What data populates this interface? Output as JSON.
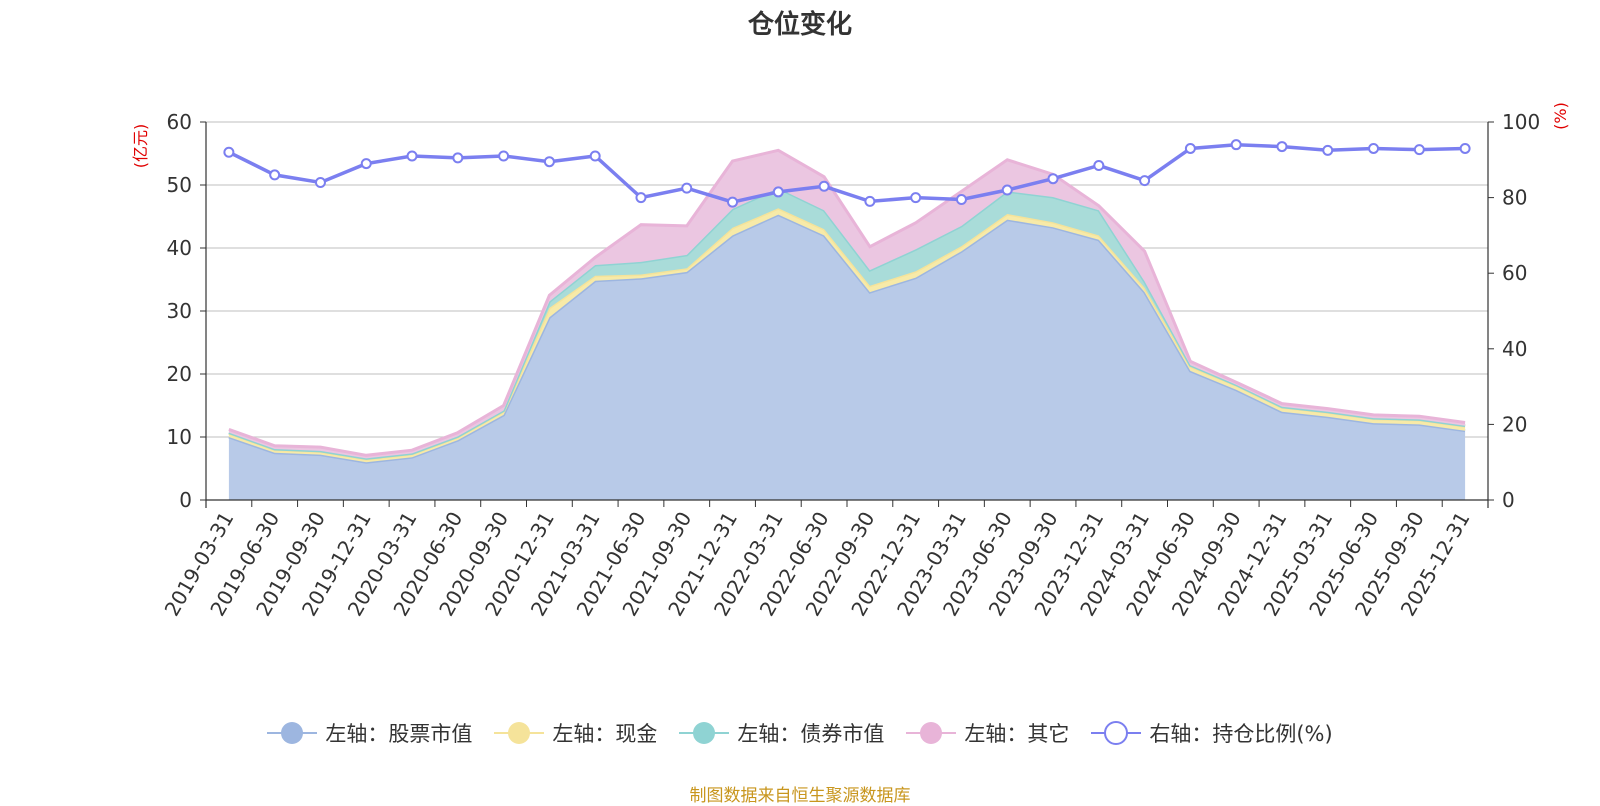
{
  "chart_data": {
    "type": "area",
    "title": "仓位变化",
    "left_axis_unit": "(亿元)",
    "right_axis_unit": "(%)",
    "ylim_left": [
      0,
      60
    ],
    "ylim_right": [
      0,
      100
    ],
    "left_ticks": [
      0,
      10,
      20,
      30,
      40,
      50,
      60
    ],
    "right_ticks": [
      0,
      20,
      40,
      60,
      80,
      100
    ],
    "categories": [
      "2019-03-31",
      "2019-06-30",
      "2019-09-30",
      "2019-12-31",
      "2020-03-31",
      "2020-06-30",
      "2020-09-30",
      "2020-12-31",
      "2021-03-31",
      "2021-06-30",
      "2021-09-30",
      "2021-12-31",
      "2022-03-31",
      "2022-06-30",
      "2022-09-30",
      "2022-12-31",
      "2023-03-31",
      "2023-06-30",
      "2023-09-30",
      "2023-12-31",
      "2024-03-31",
      "2024-06-30",
      "2024-09-30",
      "2024-12-31",
      "2025-03-31",
      "2025-06-30",
      "2025-09-30",
      "2025-12-31"
    ],
    "stacked_series": [
      {
        "name": "左轴：股票市值",
        "color": "#9db6e0",
        "fill": "#b8cae8",
        "values": [
          10.0,
          7.5,
          7.2,
          6.0,
          6.8,
          9.5,
          13.5,
          29.0,
          34.8,
          35.2,
          36.2,
          42.0,
          45.3,
          42.0,
          33.0,
          35.3,
          39.5,
          44.5,
          43.3,
          41.3,
          33.0,
          20.5,
          17.5,
          14.0,
          13.2,
          12.2,
          12.0,
          11.0
        ]
      },
      {
        "name": "左轴：现金",
        "color": "#f5e39a",
        "fill": "#f7eaa8",
        "values": [
          0.6,
          0.5,
          0.5,
          0.5,
          0.5,
          0.5,
          0.6,
          1.5,
          0.8,
          0.6,
          0.6,
          1.2,
          1.0,
          1.0,
          1.0,
          1.0,
          0.8,
          0.9,
          0.8,
          0.7,
          0.7,
          0.7,
          0.7,
          0.7,
          0.7,
          0.7,
          0.7,
          0.7
        ]
      },
      {
        "name": "左轴：债券市值",
        "color": "#8fd3d3",
        "fill": "#a9dcd9",
        "values": [
          0.1,
          0.1,
          0.1,
          0.1,
          0.1,
          0.1,
          0.1,
          1.0,
          1.7,
          2.0,
          2.1,
          3.0,
          3.2,
          3.0,
          2.5,
          3.5,
          3.2,
          3.6,
          4.0,
          4.0,
          1.0,
          0.2,
          0.1,
          0.1,
          0.1,
          0.1,
          0.1,
          0.1
        ]
      },
      {
        "name": "左轴：其它",
        "color": "#e8b4d8",
        "fill": "#ebc6e1",
        "values": [
          0.5,
          0.5,
          0.6,
          0.5,
          0.5,
          0.6,
          0.8,
          1.0,
          1.2,
          5.9,
          4.6,
          7.6,
          6.0,
          5.3,
          3.7,
          4.2,
          5.5,
          5.0,
          3.6,
          0.7,
          4.8,
          0.6,
          0.4,
          0.5,
          0.5,
          0.5,
          0.5,
          0.5
        ]
      }
    ],
    "line_series": {
      "name": "右轴：持仓比例(%)",
      "color": "#7b7ff0",
      "values": [
        92,
        86,
        84,
        89,
        91,
        90.5,
        91,
        89.5,
        91,
        80,
        82.5,
        78.8,
        81.5,
        83,
        79,
        80,
        79.5,
        82,
        85,
        88.5,
        84.5,
        93,
        94,
        93.5,
        92.5,
        93,
        92.7,
        93
      ]
    },
    "legend": [
      "左轴：股票市值",
      "左轴：现金",
      "左轴：债券市值",
      "左轴：其它",
      "右轴：持仓比例(%)"
    ]
  },
  "source_note": "制图数据来自恒生聚源数据库"
}
